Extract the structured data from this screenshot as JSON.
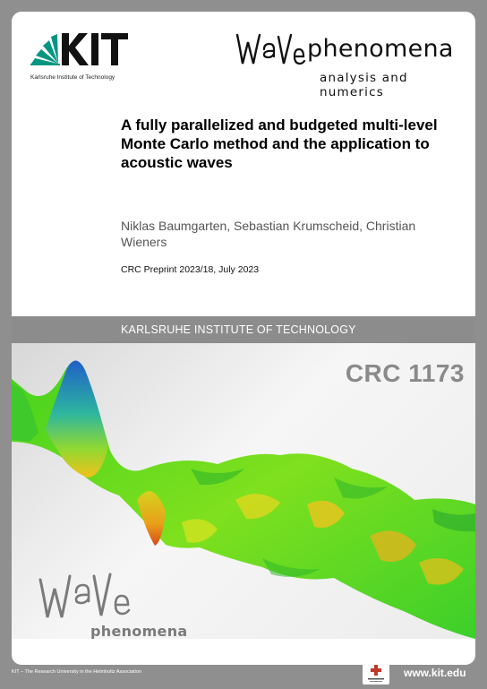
{
  "header": {
    "kit_logo_text": "KIT",
    "kit_caption": "Karlsruhe Institute of Technology",
    "wave_logo_main": "phenomena",
    "wave_logo_sub": "analysis and numerics"
  },
  "document": {
    "title": "A fully parallelized and budgeted multi-level Monte Carlo method and the application to acoustic waves",
    "authors": "Niklas Baumgarten, Sebastian Krumscheid, Christian Wieners",
    "preprint": "CRC Preprint 2023/18, July 2023"
  },
  "band": {
    "label": "KARLSRUHE INSTITUTE OF TECHNOLOGY"
  },
  "cover": {
    "crc_label": "CRC 1173",
    "wave_logo_bottom": "phenomena"
  },
  "footer": {
    "association": "KIT – The Research University in the Helmholtz Association",
    "website": "www.kit.edu"
  },
  "colors": {
    "kit_green": "#009682",
    "band_gray": "#8c8c8c",
    "page_background": "#8f8f8f"
  }
}
